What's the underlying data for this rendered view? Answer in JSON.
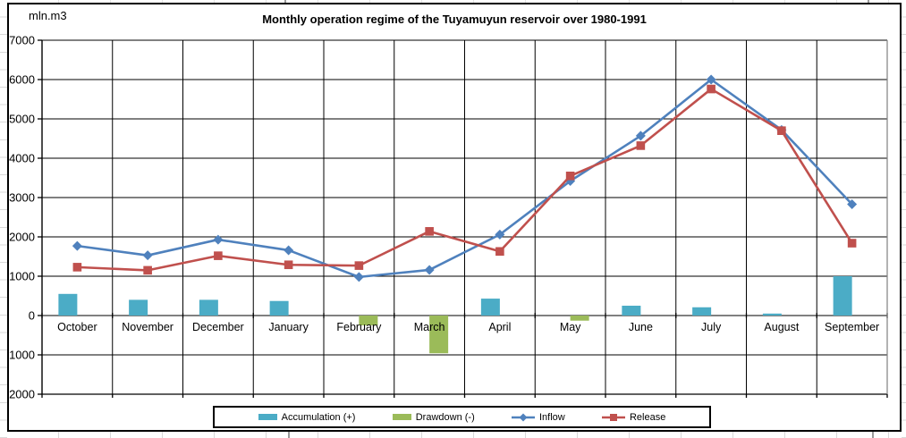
{
  "chart_data": {
    "type": "combo-bar-line",
    "title": "Monthly operation regime of the Tuyamuyun reservoir over 1980-1991",
    "unit_label": "mln.m3",
    "categories": [
      "October",
      "November",
      "December",
      "January",
      "February",
      "March",
      "April",
      "May",
      "June",
      "July",
      "August",
      "September"
    ],
    "series": [
      {
        "name": "Accumulation (+)",
        "type": "bar",
        "color": "#4BACC6",
        "values": [
          550,
          400,
          400,
          370,
          0,
          0,
          430,
          0,
          250,
          210,
          50,
          1000
        ]
      },
      {
        "name": "Drawdown (-)",
        "type": "bar",
        "color": "#9BBB59",
        "values": [
          0,
          0,
          0,
          0,
          -250,
          -960,
          0,
          -130,
          0,
          0,
          0,
          0
        ]
      },
      {
        "name": "Inflow",
        "type": "line",
        "marker": "diamond",
        "color": "#4F81BD",
        "values": [
          1770,
          1530,
          1930,
          1660,
          980,
          1160,
          2060,
          3420,
          4570,
          6000,
          4720,
          2830
        ]
      },
      {
        "name": "Release",
        "type": "line",
        "marker": "square",
        "color": "#C0504D",
        "values": [
          1230,
          1150,
          1520,
          1290,
          1270,
          2140,
          1630,
          3550,
          4320,
          5760,
          4700,
          1840
        ]
      }
    ],
    "ylim": [
      -2000,
      7000
    ],
    "ytick_step": 1000,
    "grid": true,
    "legend_position": "bottom",
    "gridline_color": "#000000",
    "plot_right_border_color": "#808080"
  }
}
